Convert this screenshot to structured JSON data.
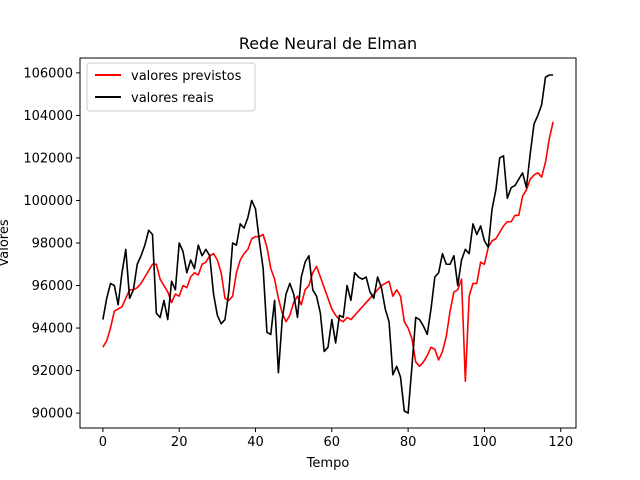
{
  "chart_data": {
    "type": "line",
    "title": "Rede Neural de Elman",
    "xlabel": "Tempo",
    "ylabel": "Valores",
    "xlim": [
      -6,
      124
    ],
    "ylim": [
      89300,
      106700
    ],
    "xticks": [
      0,
      20,
      40,
      60,
      80,
      100,
      120
    ],
    "yticks": [
      90000,
      92000,
      94000,
      96000,
      98000,
      100000,
      102000,
      104000,
      106000
    ],
    "grid": false,
    "legend_position": "top-left",
    "series": [
      {
        "name": "valores previstos",
        "color": "#ff0000",
        "x": [
          0,
          1,
          2,
          3,
          4,
          5,
          6,
          7,
          8,
          9,
          10,
          11,
          12,
          13,
          14,
          15,
          16,
          17,
          18,
          19,
          20,
          21,
          22,
          23,
          24,
          25,
          26,
          27,
          28,
          29,
          30,
          31,
          32,
          33,
          34,
          35,
          36,
          37,
          38,
          39,
          40,
          41,
          42,
          43,
          44,
          45,
          46,
          47,
          48,
          49,
          50,
          51,
          52,
          53,
          54,
          55,
          56,
          57,
          58,
          59,
          60,
          61,
          62,
          63,
          64,
          65,
          66,
          67,
          68,
          69,
          70,
          71,
          72,
          73,
          74,
          75,
          76,
          77,
          78,
          79,
          80,
          81,
          82,
          83,
          84,
          85,
          86,
          87,
          88,
          89,
          90,
          91,
          92,
          93,
          94,
          95,
          96,
          97,
          98,
          99,
          100,
          101,
          102,
          103,
          104,
          105,
          106,
          107,
          108,
          109,
          110,
          111,
          112,
          113,
          114,
          115,
          116,
          117,
          118
        ],
        "values": [
          93100,
          93400,
          94000,
          94800,
          94900,
          95000,
          95400,
          95800,
          95800,
          95900,
          96100,
          96400,
          96700,
          97000,
          97000,
          96300,
          96000,
          95700,
          95200,
          95600,
          95500,
          96000,
          95900,
          96400,
          96600,
          96500,
          97000,
          97100,
          97400,
          97500,
          97200,
          96600,
          95400,
          95300,
          95500,
          96600,
          97200,
          97500,
          97700,
          98200,
          98300,
          98300,
          98400,
          97800,
          96800,
          96300,
          95400,
          94700,
          94300,
          94600,
          95200,
          95500,
          95100,
          95800,
          96000,
          96600,
          96900,
          96400,
          95900,
          95400,
          94900,
          94600,
          94400,
          94300,
          94500,
          94400,
          94600,
          94800,
          95000,
          95200,
          95400,
          95600,
          95800,
          96000,
          96100,
          96200,
          95500,
          95800,
          95500,
          94300,
          94000,
          93500,
          92400,
          92200,
          92400,
          92700,
          93100,
          93000,
          92500,
          92900,
          93600,
          94800,
          95700,
          95800,
          96300,
          91500,
          95500,
          96100,
          96100,
          97100,
          97000,
          97800,
          98100,
          98200,
          98500,
          98800,
          99000,
          99000,
          99300,
          99300,
          100200,
          100500,
          101000,
          101200,
          101300,
          101100,
          101800,
          102900,
          103700
        ]
      },
      {
        "name": "valores reais",
        "color": "#000000",
        "x": [
          0,
          1,
          2,
          3,
          4,
          5,
          6,
          7,
          8,
          9,
          10,
          11,
          12,
          13,
          14,
          15,
          16,
          17,
          18,
          19,
          20,
          21,
          22,
          23,
          24,
          25,
          26,
          27,
          28,
          29,
          30,
          31,
          32,
          33,
          34,
          35,
          36,
          37,
          38,
          39,
          40,
          41,
          42,
          43,
          44,
          45,
          46,
          47,
          48,
          49,
          50,
          51,
          52,
          53,
          54,
          55,
          56,
          57,
          58,
          59,
          60,
          61,
          62,
          63,
          64,
          65,
          66,
          67,
          68,
          69,
          70,
          71,
          72,
          73,
          74,
          75,
          76,
          77,
          78,
          79,
          80,
          81,
          82,
          83,
          84,
          85,
          86,
          87,
          88,
          89,
          90,
          91,
          92,
          93,
          94,
          95,
          96,
          97,
          98,
          99,
          100,
          101,
          102,
          103,
          104,
          105,
          106,
          107,
          108,
          109,
          110,
          111,
          112,
          113,
          114,
          115,
          116,
          117,
          118
        ],
        "values": [
          94400,
          95400,
          96100,
          96000,
          95100,
          96600,
          97700,
          95400,
          95800,
          97000,
          97400,
          97900,
          98600,
          98400,
          94700,
          94500,
          95300,
          94400,
          96200,
          95800,
          98000,
          97600,
          96600,
          97200,
          96800,
          97900,
          97400,
          97700,
          97400,
          95600,
          94600,
          94200,
          94400,
          95700,
          98000,
          97900,
          98900,
          98700,
          99200,
          100000,
          99600,
          98100,
          96800,
          93800,
          93700,
          95300,
          91900,
          94400,
          95600,
          96100,
          95600,
          94500,
          96400,
          97100,
          97400,
          95800,
          95500,
          94700,
          92900,
          93100,
          94400,
          93300,
          94600,
          94500,
          96000,
          95300,
          96600,
          96400,
          96300,
          96400,
          95700,
          95400,
          96400,
          95900,
          94900,
          94300,
          91800,
          92200,
          91700,
          90100,
          90000,
          92200,
          94500,
          94400,
          94100,
          93700,
          94900,
          96400,
          96600,
          97500,
          97000,
          97000,
          97400,
          96000,
          97200,
          97700,
          97500,
          98900,
          98400,
          98800,
          98100,
          97800,
          99600,
          100500,
          102000,
          102100,
          100100,
          100600,
          100700,
          101000,
          101300,
          100600,
          102200,
          103600,
          104000,
          104500,
          105800,
          105900,
          105900
        ]
      }
    ]
  }
}
